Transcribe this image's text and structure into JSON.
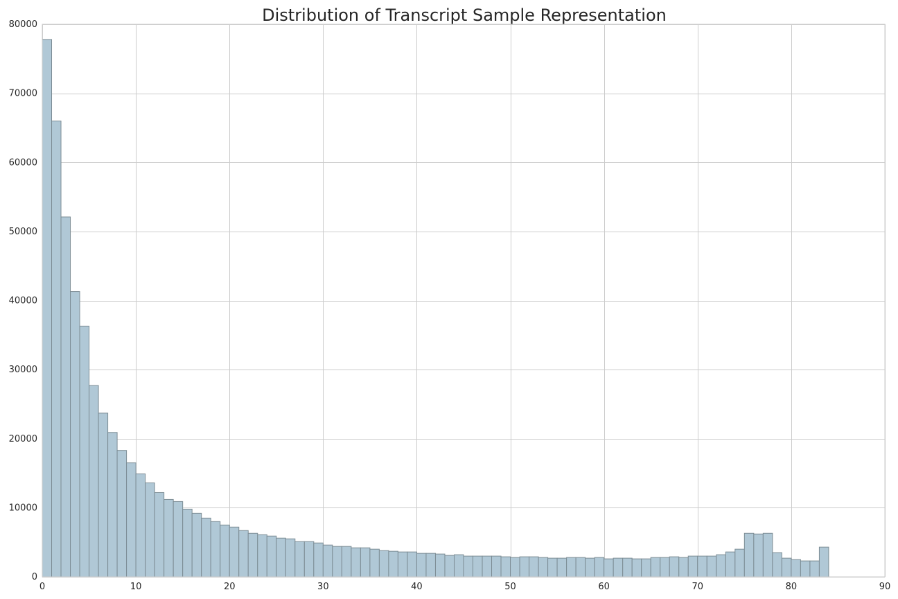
{
  "chart_data": {
    "type": "bar",
    "title": "Distribution of Transcript Sample Representation",
    "xlabel": "",
    "ylabel": "",
    "xlim": [
      0,
      90
    ],
    "ylim": [
      0,
      80000
    ],
    "x_ticks": [
      0,
      10,
      20,
      30,
      40,
      50,
      60,
      70,
      80,
      90
    ],
    "y_ticks": [
      0,
      10000,
      20000,
      30000,
      40000,
      50000,
      60000,
      70000,
      80000
    ],
    "grid": true,
    "bin_width": 1,
    "bin_starts": [
      0,
      1,
      2,
      3,
      4,
      5,
      6,
      7,
      8,
      9,
      10,
      11,
      12,
      13,
      14,
      15,
      16,
      17,
      18,
      19,
      20,
      21,
      22,
      23,
      24,
      25,
      26,
      27,
      28,
      29,
      30,
      31,
      32,
      33,
      34,
      35,
      36,
      37,
      38,
      39,
      40,
      41,
      42,
      43,
      44,
      45,
      46,
      47,
      48,
      49,
      50,
      51,
      52,
      53,
      54,
      55,
      56,
      57,
      58,
      59,
      60,
      61,
      62,
      63,
      64,
      65,
      66,
      67,
      68,
      69,
      70,
      71,
      72,
      73,
      74,
      75,
      76,
      77,
      78,
      79,
      80,
      81,
      82,
      83
    ],
    "values": [
      77800,
      66000,
      52100,
      41300,
      36300,
      27700,
      23700,
      20900,
      18300,
      16500,
      14900,
      13600,
      12200,
      11200,
      10900,
      9800,
      9200,
      8500,
      8000,
      7500,
      7200,
      6700,
      6300,
      6100,
      5900,
      5600,
      5500,
      5100,
      5100,
      4900,
      4600,
      4400,
      4400,
      4200,
      4200,
      4000,
      3800,
      3700,
      3600,
      3600,
      3400,
      3400,
      3300,
      3100,
      3200,
      3000,
      3000,
      3000,
      3000,
      2900,
      2800,
      2900,
      2900,
      2800,
      2700,
      2700,
      2800,
      2800,
      2700,
      2800,
      2600,
      2700,
      2700,
      2600,
      2600,
      2800,
      2800,
      2900,
      2800,
      3000,
      3000,
      3000,
      3200,
      3600,
      4000,
      6300,
      6200,
      6300,
      3500,
      2700,
      2500,
      2300,
      2300,
      4300
    ],
    "bar_color": "#b0c8d6",
    "bar_edge_color": "#7c8c94",
    "grid_color": "#cccccc"
  }
}
